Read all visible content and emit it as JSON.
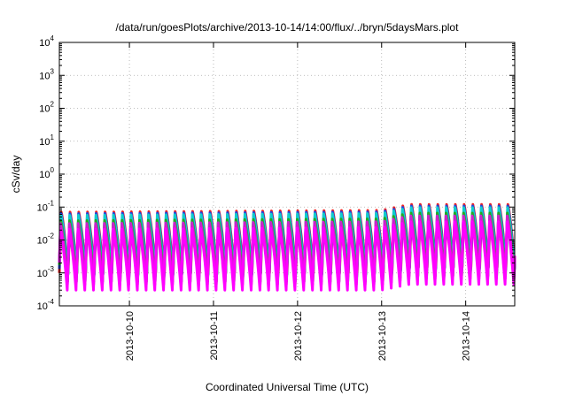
{
  "chart_data": {
    "type": "line",
    "title": "/data/run/goesPlots/archive/2013-10-14/14:00/flux/../bryn/5daysMars.plot",
    "xlabel": "Coordinated Universal Time (UTC)",
    "ylabel": "cSv/day",
    "yscale": "log",
    "ylim": [
      0.0001,
      10000
    ],
    "xlim": [
      "2013-10-09T04:00",
      "2013-10-14T14:00"
    ],
    "grid": true,
    "y_ticks": [
      {
        "base": "10",
        "exp": "-4",
        "value": 0.0001
      },
      {
        "base": "10",
        "exp": "-3",
        "value": 0.001
      },
      {
        "base": "10",
        "exp": "-2",
        "value": 0.01
      },
      {
        "base": "10",
        "exp": "-1",
        "value": 0.1
      },
      {
        "base": "10",
        "exp": "0",
        "value": 1
      },
      {
        "base": "10",
        "exp": "1",
        "value": 10
      },
      {
        "base": "10",
        "exp": "2",
        "value": 100
      },
      {
        "base": "10",
        "exp": "3",
        "value": 1000
      },
      {
        "base": "10",
        "exp": "4",
        "value": 10000
      }
    ],
    "x_ticks": [
      {
        "label": "2013-10-10",
        "value": "2013-10-10T00:00"
      },
      {
        "label": "2013-10-11",
        "value": "2013-10-11T00:00"
      },
      {
        "label": "2013-10-12",
        "value": "2013-10-12T00:00"
      },
      {
        "label": "2013-10-13",
        "value": "2013-10-13T00:00"
      },
      {
        "label": "2013-10-14",
        "value": "2013-10-14T00:00"
      }
    ],
    "waveform": {
      "cycle_period_hours": 2.5,
      "peak": [
        {
          "t": "2013-10-09T04:00",
          "v": 0.07
        },
        {
          "t": "2013-10-13T00:00",
          "v": 0.08
        },
        {
          "t": "2013-10-13T08:00",
          "v": 0.12
        },
        {
          "t": "2013-10-14T14:00",
          "v": 0.12
        }
      ],
      "trough": [
        {
          "t": "2013-10-09T04:00",
          "v": 0.001
        },
        {
          "t": "2013-10-13T00:00",
          "v": 0.001
        },
        {
          "t": "2013-10-13T08:00",
          "v": 0.0015
        },
        {
          "t": "2013-10-14T14:00",
          "v": 0.0015
        }
      ]
    },
    "series": [
      {
        "color": "#ee2222",
        "scale": 1.0
      },
      {
        "color": "#2244dd",
        "scale": 0.9
      },
      {
        "color": "#11cccc",
        "scale": 0.8
      },
      {
        "color": "#22aa22",
        "scale": 0.55
      },
      {
        "color": "#cc22cc",
        "scale": 0.45
      },
      {
        "color": "#ff00ff",
        "scale": 0.3
      }
    ]
  }
}
